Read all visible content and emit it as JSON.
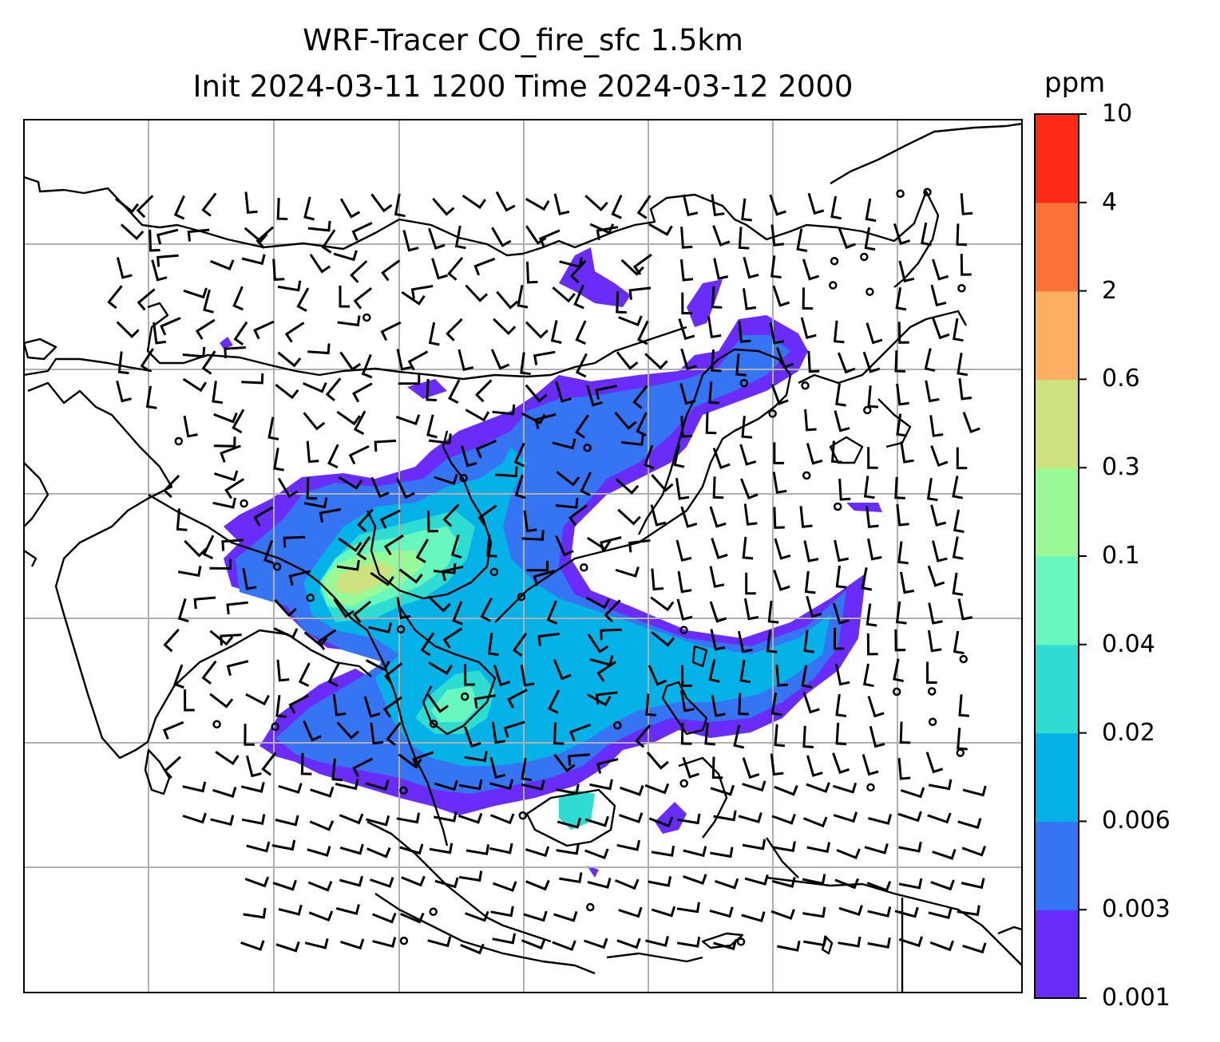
{
  "title": {
    "line1": "WRF-Tracer CO_fire_sfc 1.5km",
    "line2": "Init 2024-03-11 1200 Time 2024-03-12 2000"
  },
  "colorbar": {
    "unit": "ppm",
    "levels": [
      "0.001",
      "0.003",
      "0.006",
      "0.02",
      "0.04",
      "0.1",
      "0.3",
      "0.6",
      "2",
      "4",
      "10"
    ],
    "colors": [
      "#6a2cfb",
      "#3574f2",
      "#05b2e8",
      "#2edcd2",
      "#67f8bf",
      "#99f997",
      "#cde17e",
      "#feae62",
      "#fe7239",
      "#fe2a17"
    ]
  },
  "map": {
    "grid": "on",
    "field_colors": {
      "c001": "#6a2cfb",
      "c003": "#3574f2",
      "c006": "#05b2e8",
      "c02": "#2edcd2",
      "c04": "#67f8bf",
      "c1": "#99f997",
      "c3": "#cde17e"
    },
    "overlay": "wind-barbs",
    "coastlines": "on"
  }
}
